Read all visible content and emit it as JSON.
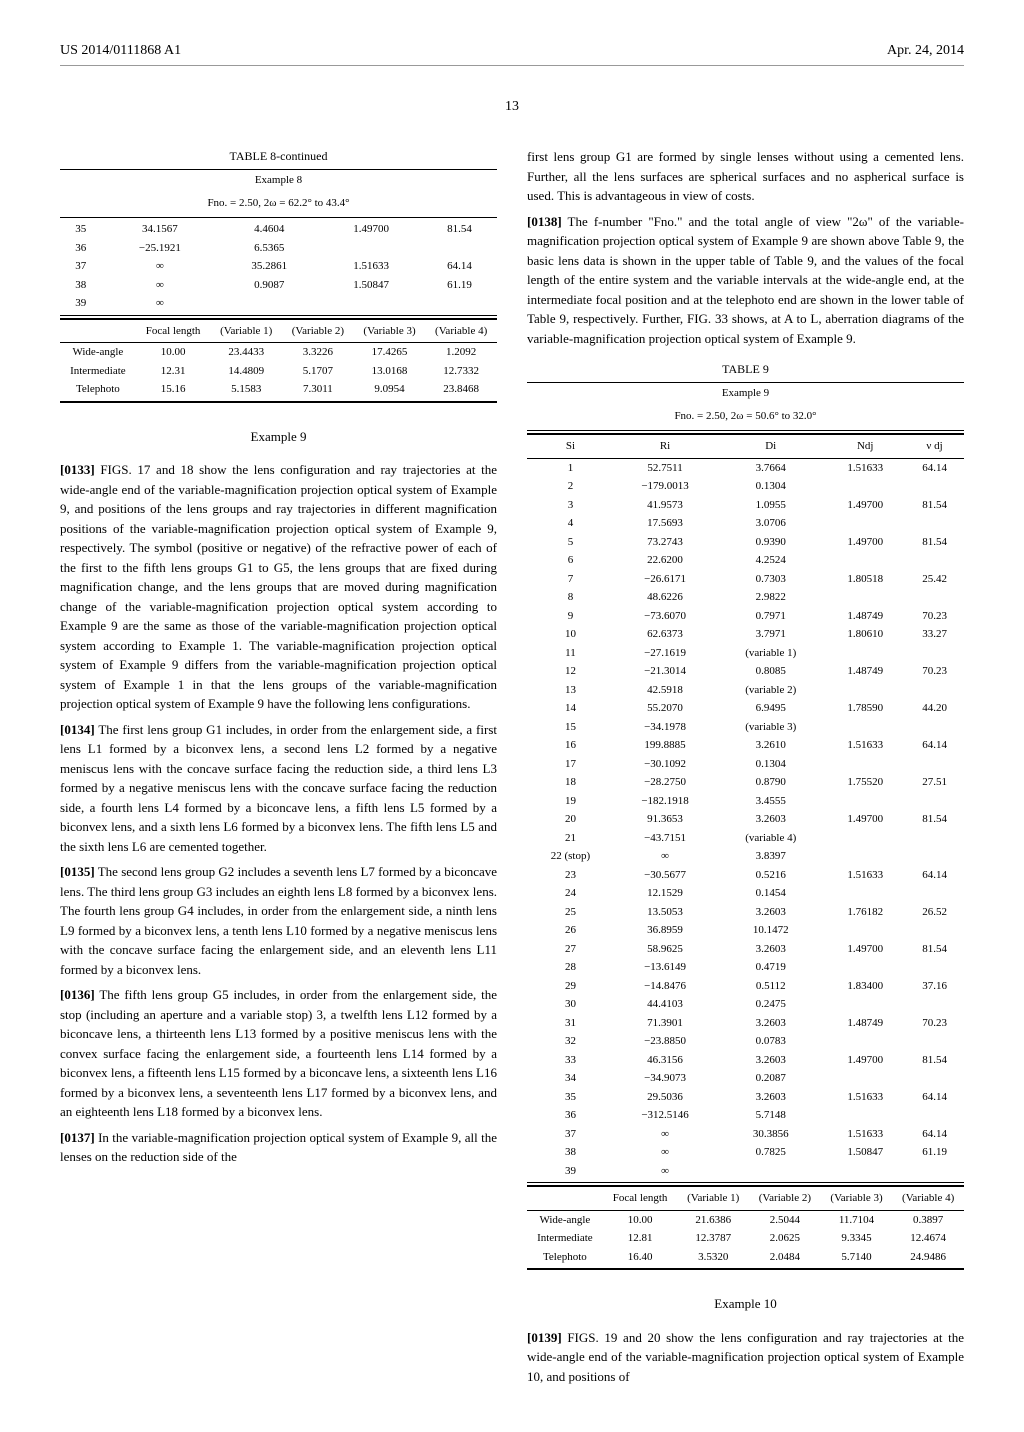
{
  "header": {
    "pub": "US 2014/0111868 A1",
    "date": "Apr. 24, 2014"
  },
  "pageNumber": "13",
  "table8": {
    "title": "TABLE 8-continued",
    "sub1": "Example 8",
    "sub2": "Fno. = 2.50, 2ω = 62.2° to 43.4°",
    "topRows": [
      [
        "35",
        "34.1567",
        "4.4604",
        "1.49700",
        "81.54"
      ],
      [
        "36",
        "−25.1921",
        "6.5365",
        "",
        ""
      ],
      [
        "37",
        "∞",
        "35.2861",
        "1.51633",
        "64.14"
      ],
      [
        "38",
        "∞",
        "0.9087",
        "1.50847",
        "61.19"
      ],
      [
        "39",
        "∞",
        "",
        "",
        ""
      ]
    ],
    "midHeaders": [
      "",
      "Focal length",
      "(Variable 1)",
      "(Variable 2)",
      "(Variable 3)",
      "(Variable 4)"
    ],
    "bottomRows": [
      [
        "Wide-angle",
        "10.00",
        "23.4433",
        "3.3226",
        "17.4265",
        "1.2092"
      ],
      [
        "Intermediate",
        "12.31",
        "14.4809",
        "5.1707",
        "13.0168",
        "12.7332"
      ],
      [
        "Telephoto",
        "15.16",
        "5.1583",
        "7.3011",
        "9.0954",
        "23.8468"
      ]
    ]
  },
  "ex9": {
    "title": "Example 9"
  },
  "p0133": {
    "num": "[0133]",
    "text": "FIGS. 17 and 18 show the lens configuration and ray trajectories at the wide-angle end of the variable-magnification projection optical system of Example 9, and positions of the lens groups and ray trajectories in different magnification positions of the variable-magnification projection optical system of Example 9, respectively. The symbol (positive or negative) of the refractive power of each of the first to the fifth lens groups G1 to G5, the lens groups that are fixed during magnification change, and the lens groups that are moved during magnification change of the variable-magnification projection optical system according to Example 9 are the same as those of the variable-magnification projection optical system according to Example 1. The variable-magnification projection optical system of Example 9 differs from the variable-magnification projection optical system of Example 1 in that the lens groups of the variable-magnification projection optical system of Example 9 have the following lens configurations."
  },
  "p0134": {
    "num": "[0134]",
    "text": "The first lens group G1 includes, in order from the enlargement side, a first lens L1 formed by a biconvex lens, a second lens L2 formed by a negative meniscus lens with the concave surface facing the reduction side, a third lens L3 formed by a negative meniscus lens with the concave surface facing the reduction side, a fourth lens L4 formed by a biconcave lens, a fifth lens L5 formed by a biconvex lens, and a sixth lens L6 formed by a biconvex lens. The fifth lens L5 and the sixth lens L6 are cemented together."
  },
  "p0135": {
    "num": "[0135]",
    "text": "The second lens group G2 includes a seventh lens L7 formed by a biconcave lens. The third lens group G3 includes an eighth lens L8 formed by a biconvex lens. The fourth lens group G4 includes, in order from the enlargement side, a ninth lens L9 formed by a biconvex lens, a tenth lens L10 formed by a negative meniscus lens with the concave surface facing the enlargement side, and an eleventh lens L11 formed by a biconvex lens."
  },
  "p0136": {
    "num": "[0136]",
    "text": "The fifth lens group G5 includes, in order from the enlargement side, the stop (including an aperture and a variable stop) 3, a twelfth lens L12 formed by a biconcave lens, a thirteenth lens L13 formed by a positive meniscus lens with the convex surface facing the enlargement side, a fourteenth lens L14 formed by a biconvex lens, a fifteenth lens L15 formed by a biconcave lens, a sixteenth lens L16 formed by a biconvex lens, a seventeenth lens L17 formed by a biconvex lens, and an eighteenth lens L18 formed by a biconvex lens."
  },
  "p0137": {
    "num": "[0137]",
    "text": "In the variable-magnification projection optical system of Example 9, all the lenses on the reduction side of the"
  },
  "rightTop": "first lens group G1 are formed by single lenses without using a cemented lens. Further, all the lens surfaces are spherical surfaces and no aspherical surface is used. This is advantageous in view of costs.",
  "p0138": {
    "num": "[0138]",
    "text": "The f-number \"Fno.\" and the total angle of view \"2ω\" of the variable-magnification projection optical system of Example 9 are shown above Table 9, the basic lens data is shown in the upper table of Table 9, and the values of the focal length of the entire system and the variable intervals at the wide-angle end, at the intermediate focal position and at the telephoto end are shown in the lower table of Table 9, respectively. Further, FIG. 33 shows, at A to L, aberration diagrams of the variable-magnification projection optical system of Example 9."
  },
  "table9": {
    "title": "TABLE 9",
    "sub1": "Example 9",
    "sub2": "Fno. = 2.50, 2ω = 50.6° to 32.0°",
    "headers": [
      "Si",
      "Ri",
      "Di",
      "Ndj",
      "ν dj"
    ],
    "rows": [
      [
        "1",
        "52.7511",
        "3.7664",
        "1.51633",
        "64.14"
      ],
      [
        "2",
        "−179.0013",
        "0.1304",
        "",
        ""
      ],
      [
        "3",
        "41.9573",
        "1.0955",
        "1.49700",
        "81.54"
      ],
      [
        "4",
        "17.5693",
        "3.0706",
        "",
        ""
      ],
      [
        "5",
        "73.2743",
        "0.9390",
        "1.49700",
        "81.54"
      ],
      [
        "6",
        "22.6200",
        "4.2524",
        "",
        ""
      ],
      [
        "7",
        "−26.6171",
        "0.7303",
        "1.80518",
        "25.42"
      ],
      [
        "8",
        "48.6226",
        "2.9822",
        "",
        ""
      ],
      [
        "9",
        "−73.6070",
        "0.7971",
        "1.48749",
        "70.23"
      ],
      [
        "10",
        "62.6373",
        "3.7971",
        "1.80610",
        "33.27"
      ],
      [
        "11",
        "−27.1619",
        "(variable 1)",
        "",
        ""
      ],
      [
        "12",
        "−21.3014",
        "0.8085",
        "1.48749",
        "70.23"
      ],
      [
        "13",
        "42.5918",
        "(variable 2)",
        "",
        ""
      ],
      [
        "14",
        "55.2070",
        "6.9495",
        "1.78590",
        "44.20"
      ],
      [
        "15",
        "−34.1978",
        "(variable 3)",
        "",
        ""
      ],
      [
        "16",
        "199.8885",
        "3.2610",
        "1.51633",
        "64.14"
      ],
      [
        "17",
        "−30.1092",
        "0.1304",
        "",
        ""
      ],
      [
        "18",
        "−28.2750",
        "0.8790",
        "1.75520",
        "27.51"
      ],
      [
        "19",
        "−182.1918",
        "3.4555",
        "",
        ""
      ],
      [
        "20",
        "91.3653",
        "3.2603",
        "1.49700",
        "81.54"
      ],
      [
        "21",
        "−43.7151",
        "(variable 4)",
        "",
        ""
      ],
      [
        "22 (stop)",
        "∞",
        "3.8397",
        "",
        ""
      ],
      [
        "23",
        "−30.5677",
        "0.5216",
        "1.51633",
        "64.14"
      ],
      [
        "24",
        "12.1529",
        "0.1454",
        "",
        ""
      ],
      [
        "25",
        "13.5053",
        "3.2603",
        "1.76182",
        "26.52"
      ],
      [
        "26",
        "36.8959",
        "10.1472",
        "",
        ""
      ],
      [
        "27",
        "58.9625",
        "3.2603",
        "1.49700",
        "81.54"
      ],
      [
        "28",
        "−13.6149",
        "0.4719",
        "",
        ""
      ],
      [
        "29",
        "−14.8476",
        "0.5112",
        "1.83400",
        "37.16"
      ],
      [
        "30",
        "44.4103",
        "0.2475",
        "",
        ""
      ],
      [
        "31",
        "71.3901",
        "3.2603",
        "1.48749",
        "70.23"
      ],
      [
        "32",
        "−23.8850",
        "0.0783",
        "",
        ""
      ],
      [
        "33",
        "46.3156",
        "3.2603",
        "1.49700",
        "81.54"
      ],
      [
        "34",
        "−34.9073",
        "0.2087",
        "",
        ""
      ],
      [
        "35",
        "29.5036",
        "3.2603",
        "1.51633",
        "64.14"
      ],
      [
        "36",
        "−312.5146",
        "5.7148",
        "",
        ""
      ],
      [
        "37",
        "∞",
        "30.3856",
        "1.51633",
        "64.14"
      ],
      [
        "38",
        "∞",
        "0.7825",
        "1.50847",
        "61.19"
      ],
      [
        "39",
        "∞",
        "",
        "",
        ""
      ]
    ],
    "midHeaders": [
      "",
      "Focal length",
      "(Variable 1)",
      "(Variable 2)",
      "(Variable 3)",
      "(Variable 4)"
    ],
    "bottomRows": [
      [
        "Wide-angle",
        "10.00",
        "21.6386",
        "2.5044",
        "11.7104",
        "0.3897"
      ],
      [
        "Intermediate",
        "12.81",
        "12.3787",
        "2.0625",
        "9.3345",
        "12.4674"
      ],
      [
        "Telephoto",
        "16.40",
        "3.5320",
        "2.0484",
        "5.7140",
        "24.9486"
      ]
    ]
  },
  "ex10": {
    "title": "Example 10"
  },
  "p0139": {
    "num": "[0139]",
    "text": "FIGS. 19 and 20 show the lens configuration and ray trajectories at the wide-angle end of the variable-magnification projection optical system of Example 10, and positions of"
  }
}
